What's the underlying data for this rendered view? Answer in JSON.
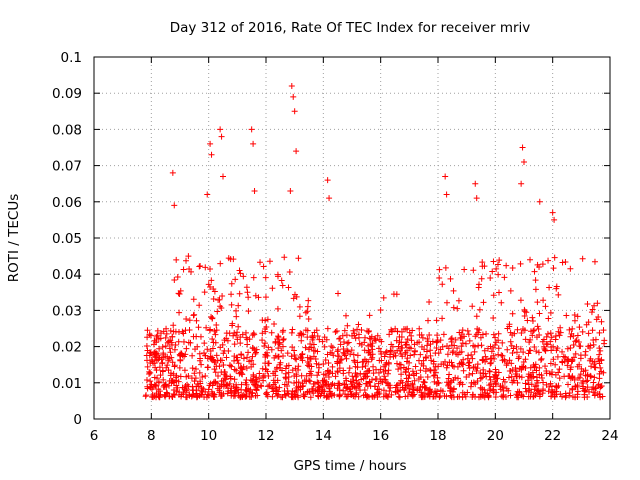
{
  "chart_data": {
    "type": "scatter",
    "title": "Day 312 of 2016, Rate Of TEC Index for receiver mriv",
    "xlabel": "GPS time / hours",
    "ylabel": "ROTI / TECUs",
    "xlim": [
      6,
      24
    ],
    "ylim": [
      0,
      0.1
    ],
    "xticks": [
      6,
      8,
      10,
      12,
      14,
      16,
      18,
      20,
      22,
      24
    ],
    "xtick_labels": [
      "6",
      "8",
      "10",
      "12",
      "14",
      "16",
      "18",
      "20",
      "22",
      "24"
    ],
    "yticks": [
      0,
      0.01,
      0.02,
      0.03,
      0.04,
      0.05,
      0.06,
      0.07,
      0.08,
      0.09,
      0.1
    ],
    "ytick_labels": [
      "0",
      "0.01",
      "0.02",
      "0.03",
      "0.04",
      "0.05",
      "0.06",
      "0.07",
      "0.08",
      "0.09",
      "0.1"
    ],
    "grid": true,
    "marker": "plus",
    "series_color": "#ff0000",
    "series": [
      {
        "name": "ROTI",
        "x_range": [
          7.8,
          23.8
        ],
        "typical_min": 0.006,
        "typical_max": 0.025,
        "band_center": 0.0135,
        "peaks": [
          {
            "x": 8.75,
            "y": 0.068
          },
          {
            "x": 8.8,
            "y": 0.059
          },
          {
            "x": 9.95,
            "y": 0.062
          },
          {
            "x": 10.05,
            "y": 0.076
          },
          {
            "x": 10.1,
            "y": 0.073
          },
          {
            "x": 10.4,
            "y": 0.08
          },
          {
            "x": 10.45,
            "y": 0.078
          },
          {
            "x": 10.5,
            "y": 0.067
          },
          {
            "x": 11.5,
            "y": 0.08
          },
          {
            "x": 11.55,
            "y": 0.076
          },
          {
            "x": 11.6,
            "y": 0.063
          },
          {
            "x": 12.9,
            "y": 0.092
          },
          {
            "x": 12.95,
            "y": 0.089
          },
          {
            "x": 13.0,
            "y": 0.085
          },
          {
            "x": 13.05,
            "y": 0.074
          },
          {
            "x": 12.85,
            "y": 0.063
          },
          {
            "x": 14.15,
            "y": 0.066
          },
          {
            "x": 14.2,
            "y": 0.061
          },
          {
            "x": 18.25,
            "y": 0.067
          },
          {
            "x": 18.3,
            "y": 0.062
          },
          {
            "x": 19.3,
            "y": 0.065
          },
          {
            "x": 19.35,
            "y": 0.061
          },
          {
            "x": 20.95,
            "y": 0.075
          },
          {
            "x": 21.0,
            "y": 0.071
          },
          {
            "x": 20.9,
            "y": 0.065
          },
          {
            "x": 21.55,
            "y": 0.06
          },
          {
            "x": 22.0,
            "y": 0.057
          },
          {
            "x": 22.05,
            "y": 0.055
          }
        ]
      }
    ]
  }
}
